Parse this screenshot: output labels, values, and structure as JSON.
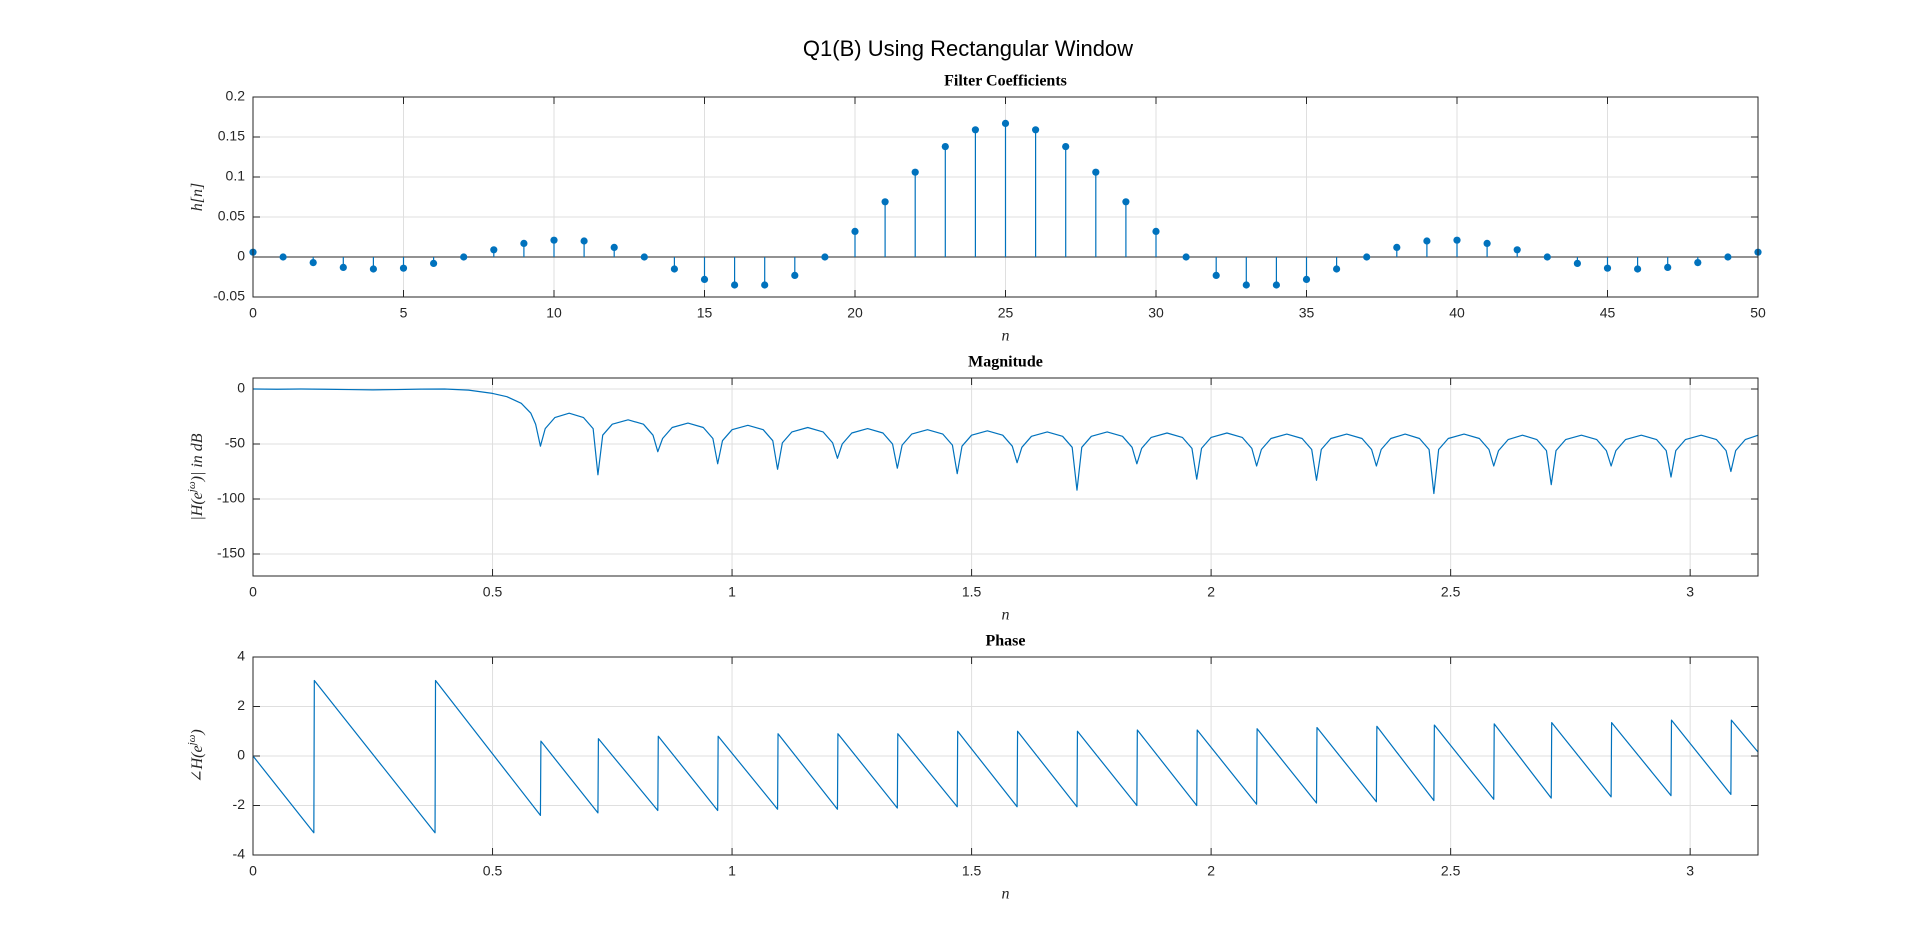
{
  "title": "Q1(B) Using Rectangular Window",
  "chart_data": [
    {
      "type": "stem",
      "title": "Filter Coefficients",
      "xlabel": "n",
      "ylabel": [
        "h[n]"
      ],
      "color": "#0072bd",
      "grid": true,
      "x": [
        0,
        1,
        2,
        3,
        4,
        5,
        6,
        7,
        8,
        9,
        10,
        11,
        12,
        13,
        14,
        15,
        16,
        17,
        18,
        19,
        20,
        21,
        22,
        23,
        24,
        25,
        26,
        27,
        28,
        29,
        30,
        31,
        32,
        33,
        34,
        35,
        36,
        37,
        38,
        39,
        40,
        41,
        42,
        43,
        44,
        45,
        46,
        47,
        48,
        49,
        50
      ],
      "values": [
        0.006,
        0,
        -0.007,
        -0.013,
        -0.015,
        -0.014,
        -0.008,
        0,
        0.009,
        0.017,
        0.021,
        0.02,
        0.012,
        0,
        -0.015,
        -0.028,
        -0.035,
        -0.035,
        -0.023,
        0,
        0.032,
        0.069,
        0.106,
        0.138,
        0.159,
        0.167,
        0.159,
        0.138,
        0.106,
        0.069,
        0.032,
        0,
        -0.023,
        -0.035,
        -0.035,
        -0.028,
        -0.015,
        0,
        0.012,
        0.02,
        0.021,
        0.017,
        0.009,
        0,
        -0.008,
        -0.014,
        -0.015,
        -0.013,
        -0.007,
        0,
        0.006
      ],
      "xlim": [
        0,
        50
      ],
      "xticks": [
        0,
        5,
        10,
        15,
        20,
        25,
        30,
        35,
        40,
        45,
        50
      ],
      "ylim": [
        -0.05,
        0.2
      ],
      "yticks": [
        -0.05,
        0,
        0.05,
        0.1,
        0.15,
        0.2
      ]
    },
    {
      "type": "line",
      "title": "Magnitude",
      "xlabel": "n",
      "ylabel": [
        "|H(e",
        "jω",
        ")| in dB"
      ],
      "color": "#0072bd",
      "grid": true,
      "x": [
        0,
        0.05,
        0.1,
        0.15,
        0.2,
        0.25,
        0.3,
        0.35,
        0.4,
        0.45,
        0.5,
        0.53,
        0.56,
        0.58,
        0.59,
        0.6,
        0.61,
        0.63,
        0.66,
        0.69,
        0.71,
        0.72,
        0.73,
        0.75,
        0.783,
        0.815,
        0.835,
        0.845,
        0.855,
        0.875,
        0.908,
        0.94,
        0.96,
        0.97,
        0.98,
        1.0,
        1.033,
        1.065,
        1.085,
        1.095,
        1.105,
        1.125,
        1.158,
        1.19,
        1.21,
        1.22,
        1.23,
        1.25,
        1.283,
        1.315,
        1.335,
        1.345,
        1.355,
        1.375,
        1.408,
        1.44,
        1.46,
        1.47,
        1.48,
        1.5,
        1.533,
        1.565,
        1.585,
        1.595,
        1.605,
        1.625,
        1.658,
        1.69,
        1.71,
        1.72,
        1.73,
        1.75,
        1.783,
        1.815,
        1.835,
        1.845,
        1.855,
        1.875,
        1.908,
        1.94,
        1.96,
        1.97,
        1.98,
        2.0,
        2.033,
        2.065,
        2.085,
        2.095,
        2.105,
        2.125,
        2.158,
        2.19,
        2.21,
        2.22,
        2.23,
        2.25,
        2.283,
        2.315,
        2.335,
        2.345,
        2.355,
        2.375,
        2.405,
        2.435,
        2.455,
        2.465,
        2.475,
        2.495,
        2.528,
        2.56,
        2.58,
        2.59,
        2.6,
        2.62,
        2.65,
        2.68,
        2.7,
        2.71,
        2.72,
        2.74,
        2.773,
        2.805,
        2.825,
        2.835,
        2.845,
        2.865,
        2.898,
        2.93,
        2.95,
        2.96,
        2.97,
        2.99,
        3.023,
        3.055,
        3.075,
        3.085,
        3.095,
        3.115,
        3.142
      ],
      "values": [
        0,
        -0.2,
        0,
        -0.2,
        -0.5,
        -0.8,
        -0.5,
        -0.1,
        0,
        -1,
        -4,
        -7,
        -13,
        -22,
        -32,
        -52,
        -36,
        -26,
        -22,
        -26,
        -36,
        -78,
        -42,
        -32,
        -28,
        -32,
        -42,
        -57,
        -45,
        -35,
        -31,
        -35,
        -45,
        -68,
        -47,
        -37,
        -33,
        -37,
        -47,
        -73,
        -49,
        -39,
        -35,
        -39,
        -49,
        -63,
        -50,
        -40,
        -36,
        -40,
        -50,
        -72,
        -51,
        -41,
        -37,
        -41,
        -51,
        -77,
        -52,
        -42,
        -38,
        -42,
        -52,
        -67,
        -53,
        -43,
        -39,
        -43,
        -53,
        -92,
        -53,
        -43,
        -39,
        -43,
        -53,
        -68,
        -54,
        -44,
        -40,
        -44,
        -54,
        -82,
        -54,
        -44,
        -40,
        -44,
        -54,
        -70,
        -55,
        -45,
        -41,
        -45,
        -55,
        -83,
        -55,
        -45,
        -41,
        -45,
        -55,
        -70,
        -55,
        -45,
        -41,
        -45,
        -55,
        -95,
        -55,
        -45,
        -41,
        -45,
        -55,
        -70,
        -56,
        -46,
        -42,
        -46,
        -56,
        -87,
        -56,
        -46,
        -42,
        -46,
        -56,
        -70,
        -56,
        -46,
        -42,
        -46,
        -56,
        -80,
        -56,
        -46,
        -42,
        -46,
        -56,
        -75,
        -56,
        -46,
        -42
      ],
      "xlim": [
        0,
        3.1416
      ],
      "xticks": [
        0,
        0.5,
        1,
        1.5,
        2,
        2.5,
        3
      ],
      "ylim": [
        -170,
        10
      ],
      "yticks": [
        -150,
        -100,
        -50,
        0
      ]
    },
    {
      "type": "line",
      "title": "Phase",
      "xlabel": "n",
      "ylabel": [
        "∠H(e",
        "jω",
        ")"
      ],
      "color": "#0072bd",
      "grid": true,
      "x": [
        0,
        0.127,
        0.128,
        0.38,
        0.381,
        0.6,
        0.601,
        0.72,
        0.721,
        0.845,
        0.846,
        0.97,
        0.971,
        1.095,
        1.096,
        1.22,
        1.221,
        1.345,
        1.346,
        1.47,
        1.471,
        1.595,
        1.596,
        1.72,
        1.721,
        1.845,
        1.846,
        1.97,
        1.971,
        2.095,
        2.096,
        2.22,
        2.221,
        2.345,
        2.346,
        2.465,
        2.466,
        2.59,
        2.591,
        2.71,
        2.711,
        2.835,
        2.836,
        2.96,
        2.961,
        3.085,
        3.086,
        3.142
      ],
      "values": [
        0,
        -3.1,
        3.05,
        -3.1,
        3.05,
        -2.4,
        0.6,
        -2.3,
        0.7,
        -2.2,
        0.8,
        -2.2,
        0.8,
        -2.15,
        0.9,
        -2.15,
        0.9,
        -2.1,
        0.9,
        -2.05,
        1.0,
        -2.05,
        1.0,
        -2.05,
        1.0,
        -2.0,
        1.05,
        -2.0,
        1.05,
        -1.95,
        1.1,
        -1.9,
        1.15,
        -1.85,
        1.2,
        -1.8,
        1.25,
        -1.75,
        1.3,
        -1.7,
        1.35,
        -1.65,
        1.35,
        -1.6,
        1.45,
        -1.55,
        1.45,
        0.15
      ],
      "xlim": [
        0,
        3.1416
      ],
      "xticks": [
        0,
        0.5,
        1,
        1.5,
        2,
        2.5,
        3
      ],
      "ylim": [
        -4,
        4
      ],
      "yticks": [
        -4,
        -2,
        0,
        2,
        4
      ]
    }
  ]
}
